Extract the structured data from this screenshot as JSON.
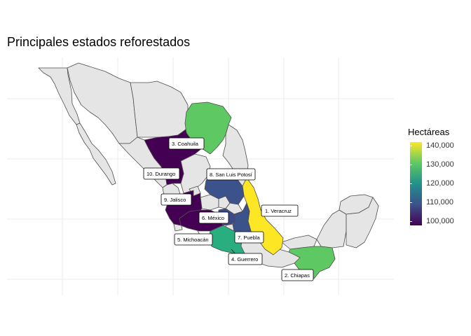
{
  "title": "Principales estados reforestados",
  "legend": {
    "title": "Hectáreas",
    "ticks": [
      "140,000",
      "130,000",
      "120,000",
      "110,000",
      "100,000"
    ],
    "range": [
      100000,
      140000
    ],
    "colors": [
      "#440154",
      "#3b528b",
      "#21918c",
      "#5ec962",
      "#fde725"
    ]
  },
  "labels": [
    {
      "id": "veracruz",
      "text": "1. Veracruz"
    },
    {
      "id": "chiapas",
      "text": "2. Chiapas"
    },
    {
      "id": "coahuila",
      "text": "3. Coahuila"
    },
    {
      "id": "guerrero",
      "text": "4. Guerrero"
    },
    {
      "id": "michoacan",
      "text": "5. Michoacán"
    },
    {
      "id": "mexico",
      "text": "6. México"
    },
    {
      "id": "puebla",
      "text": "7. Puebla"
    },
    {
      "id": "slp",
      "text": "8. San Luis Potosí"
    },
    {
      "id": "jalisco",
      "text": "9. Jalisco"
    },
    {
      "id": "durango",
      "text": "10. Durango"
    }
  ]
}
